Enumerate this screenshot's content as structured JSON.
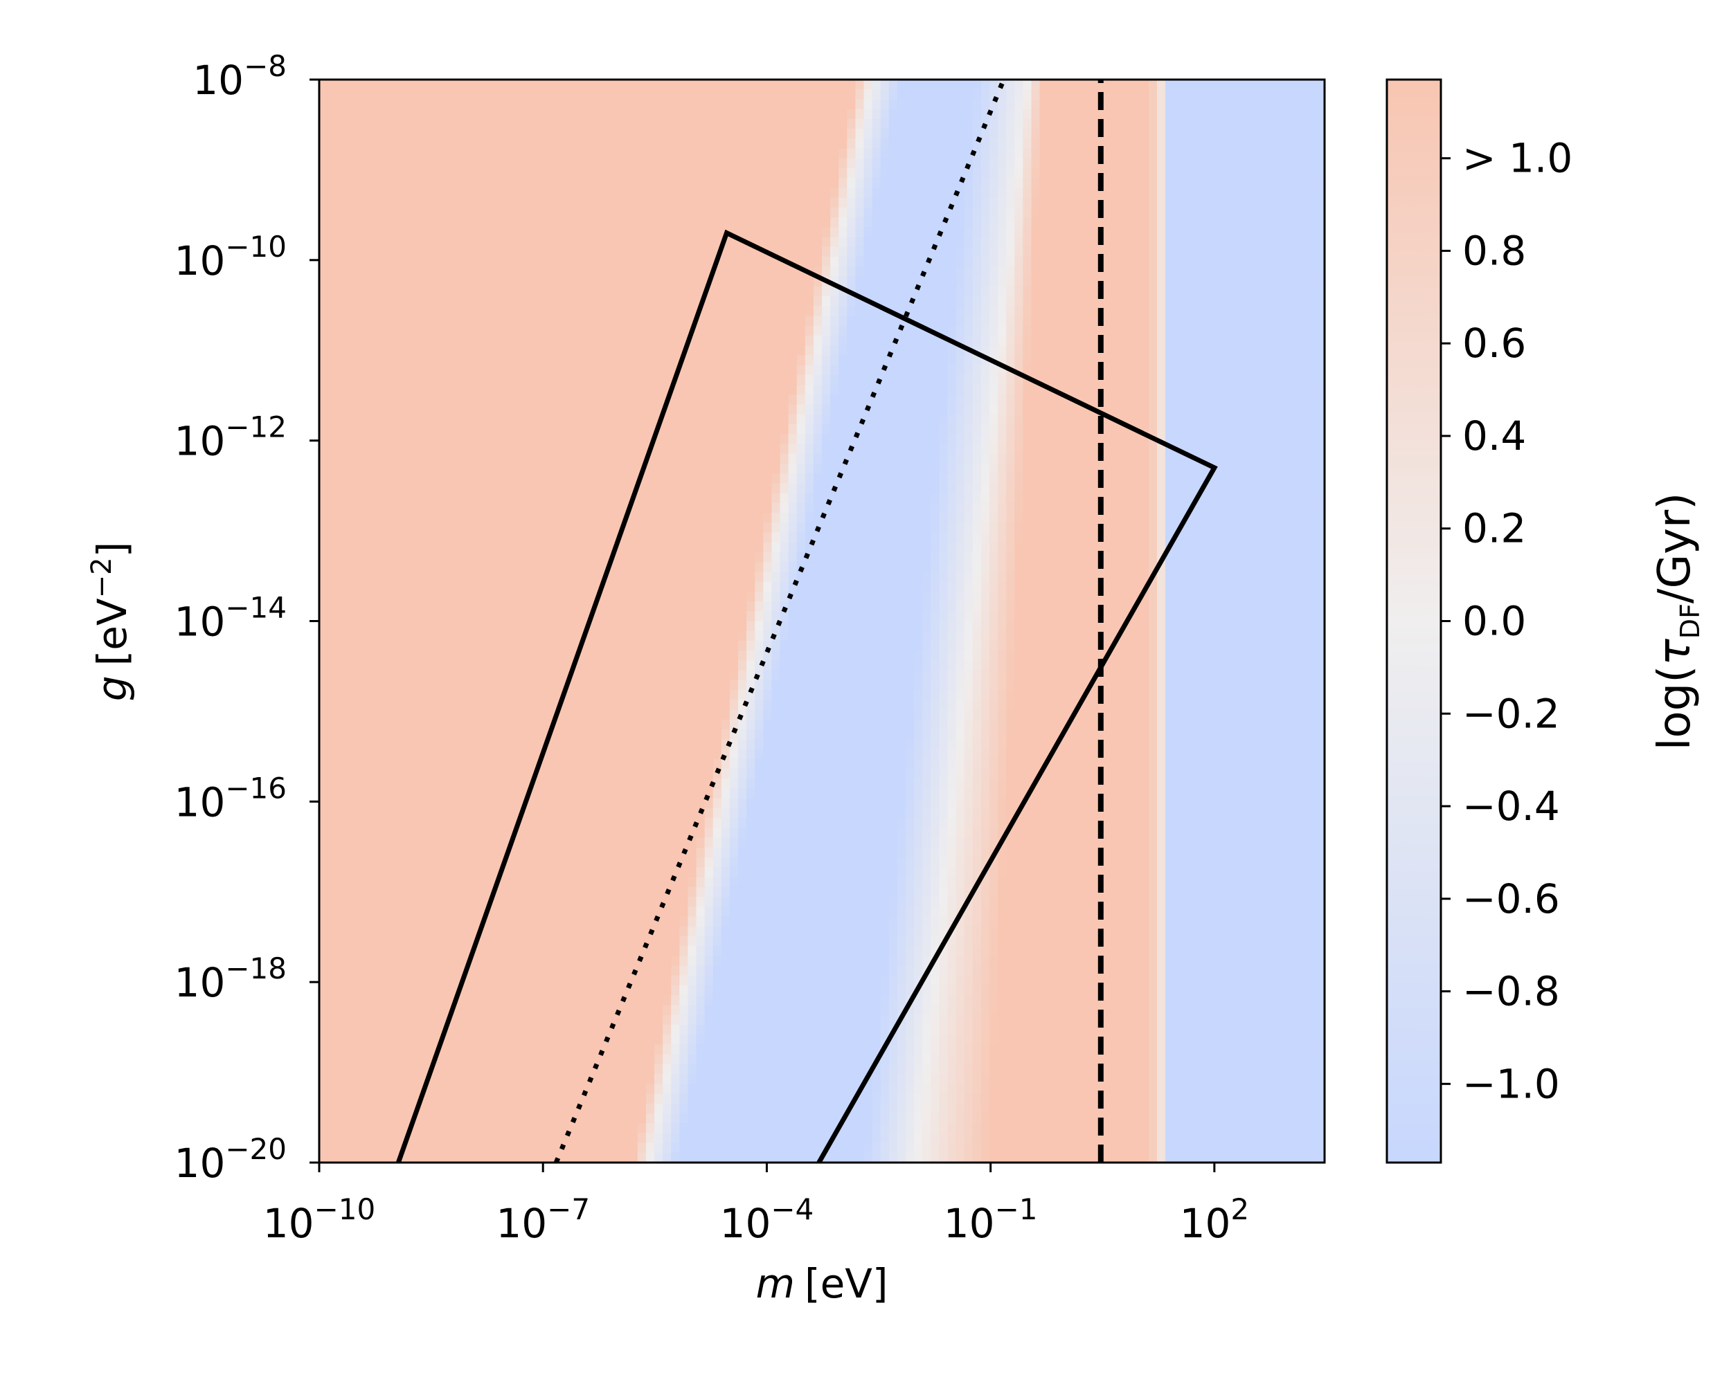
{
  "chart_data": {
    "type": "heatmap",
    "xlabel_var": "m",
    "xlabel_unit": "[eV]",
    "ylabel_var": "g",
    "ylabel_unit_pre": "[eV",
    "ylabel_unit_exp": "−2",
    "ylabel_unit_post": "]",
    "x_scale": "log",
    "y_scale": "log",
    "xlim": [
      1e-10,
      3000
    ],
    "ylim": [
      1e-20,
      1e-08
    ],
    "x_ticks": [
      {
        "value": 1e-10,
        "base": "10",
        "exp": "−10"
      },
      {
        "value": 1e-07,
        "base": "10",
        "exp": "−7"
      },
      {
        "value": 0.0001,
        "base": "10",
        "exp": "−4"
      },
      {
        "value": 0.1,
        "base": "10",
        "exp": "−1"
      },
      {
        "value": 100,
        "base": "10",
        "exp": "2"
      }
    ],
    "y_ticks": [
      {
        "value": 1e-08,
        "base": "10",
        "exp": "−8"
      },
      {
        "value": 1e-10,
        "base": "10",
        "exp": "−10"
      },
      {
        "value": 1e-12,
        "base": "10",
        "exp": "−12"
      },
      {
        "value": 1e-14,
        "base": "10",
        "exp": "−14"
      },
      {
        "value": 1e-16,
        "base": "10",
        "exp": "−16"
      },
      {
        "value": 1e-18,
        "base": "10",
        "exp": "−18"
      },
      {
        "value": 1e-20,
        "base": "10",
        "exp": "−20"
      }
    ],
    "colorbar": {
      "label_pre": "log(",
      "label_sym": "τ",
      "label_sub": "DF",
      "label_post": "/Gyr)",
      "range": [
        -1.17,
        1.17
      ],
      "ticks": [
        {
          "value": 1.0,
          "label": "> 1.0"
        },
        {
          "value": 0.8,
          "label": "0.8"
        },
        {
          "value": 0.6,
          "label": "0.6"
        },
        {
          "value": 0.4,
          "label": "0.4"
        },
        {
          "value": 0.2,
          "label": "0.2"
        },
        {
          "value": 0.0,
          "label": "0.0"
        },
        {
          "value": -0.2,
          "label": "−0.2"
        },
        {
          "value": -0.4,
          "label": "−0.4"
        },
        {
          "value": -0.6,
          "label": "−0.6"
        },
        {
          "value": -0.8,
          "label": "−0.8"
        },
        {
          "value": -1.0,
          "label": "−1.0"
        }
      ],
      "colormap": "coolwarm",
      "color_low": "#c7d7fd",
      "color_mid": "#f0eeee",
      "color_high": "#f8c6b2"
    },
    "field_boundaries": {
      "slope": 0.5,
      "left_edge_at_gmin_log10m": -5.8,
      "left_edge_transition_width": 0.6,
      "second_ridge_at_gmin_log10m": -2.0,
      "second_ridge_at_gmax_log10m": -0.5,
      "warm_band_log10m": [
        -1.0,
        1.28
      ],
      "vertical_band_edge_log10m": 1.28
    },
    "overlays": [
      {
        "name": "solid-boundary",
        "style": "solid",
        "points": [
          [
            1.15e-09,
            1e-20
          ],
          [
            2.9e-05,
            2e-10
          ],
          [
            100,
            5e-13
          ],
          [
            0.0005,
            1e-20
          ]
        ]
      },
      {
        "name": "dotted-line",
        "style": "dotted",
        "points": [
          [
            1.5e-07,
            1e-20
          ],
          [
            0.15,
            1e-08
          ]
        ]
      },
      {
        "name": "dashed-line",
        "style": "dashed",
        "points": [
          [
            3,
            1e-20
          ],
          [
            3,
            1e-08
          ]
        ]
      }
    ]
  }
}
